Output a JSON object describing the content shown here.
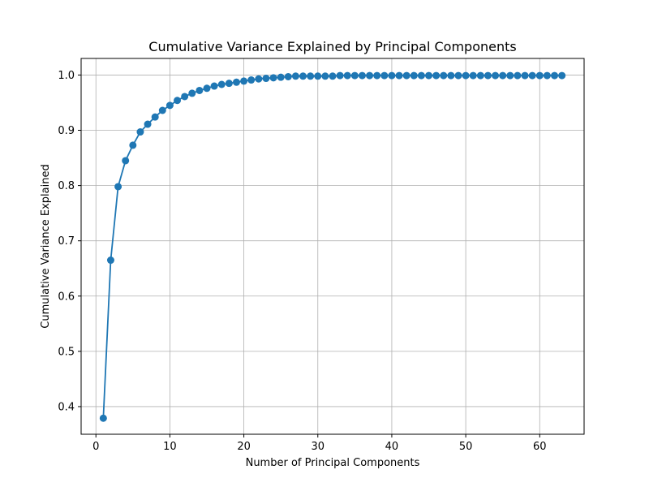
{
  "chart_data": {
    "type": "line",
    "title": "Cumulative Variance Explained by Principal Components",
    "xlabel": "Number of Principal Components",
    "ylabel": "Cumulative Variance Explained",
    "xlim": [
      -2,
      66
    ],
    "ylim": [
      0.35,
      1.03
    ],
    "xticks": [
      0,
      10,
      20,
      30,
      40,
      50,
      60
    ],
    "yticks": [
      0.4,
      0.5,
      0.6,
      0.7,
      0.8,
      0.9,
      1.0
    ],
    "xtick_labels": [
      "0",
      "10",
      "20",
      "30",
      "40",
      "50",
      "60"
    ],
    "ytick_labels": [
      "0.4",
      "0.5",
      "0.6",
      "0.7",
      "0.8",
      "0.9",
      "1.0"
    ],
    "grid": true,
    "markers": true,
    "color": "#1f77b4",
    "series": [
      {
        "x": [
          1,
          2,
          3,
          4,
          5,
          6,
          7,
          8,
          9,
          10,
          11,
          12,
          13,
          14,
          15,
          16,
          17,
          18,
          19,
          20,
          21,
          22,
          23,
          24,
          25,
          26,
          27,
          28,
          29,
          30,
          31,
          32,
          33,
          34,
          35,
          36,
          37,
          38,
          39,
          40,
          41,
          42,
          43,
          44,
          45,
          46,
          47,
          48,
          49,
          50,
          51,
          52,
          53,
          54,
          55,
          56,
          57,
          58,
          59,
          60,
          61,
          62,
          63
        ],
        "values": [
          0.379,
          0.665,
          0.798,
          0.845,
          0.873,
          0.897,
          0.911,
          0.924,
          0.936,
          0.945,
          0.954,
          0.961,
          0.967,
          0.972,
          0.976,
          0.98,
          0.983,
          0.985,
          0.987,
          0.989,
          0.991,
          0.993,
          0.994,
          0.995,
          0.996,
          0.997,
          0.998,
          0.998,
          0.998,
          0.998,
          0.998,
          0.998,
          0.999,
          0.999,
          0.999,
          0.999,
          0.999,
          0.999,
          0.999,
          0.999,
          0.999,
          0.999,
          0.999,
          0.999,
          0.999,
          0.999,
          0.999,
          0.999,
          0.999,
          0.999,
          0.999,
          0.999,
          0.999,
          0.999,
          0.999,
          0.999,
          0.999,
          0.999,
          0.999,
          0.999,
          0.999,
          0.999,
          0.999
        ]
      }
    ]
  }
}
